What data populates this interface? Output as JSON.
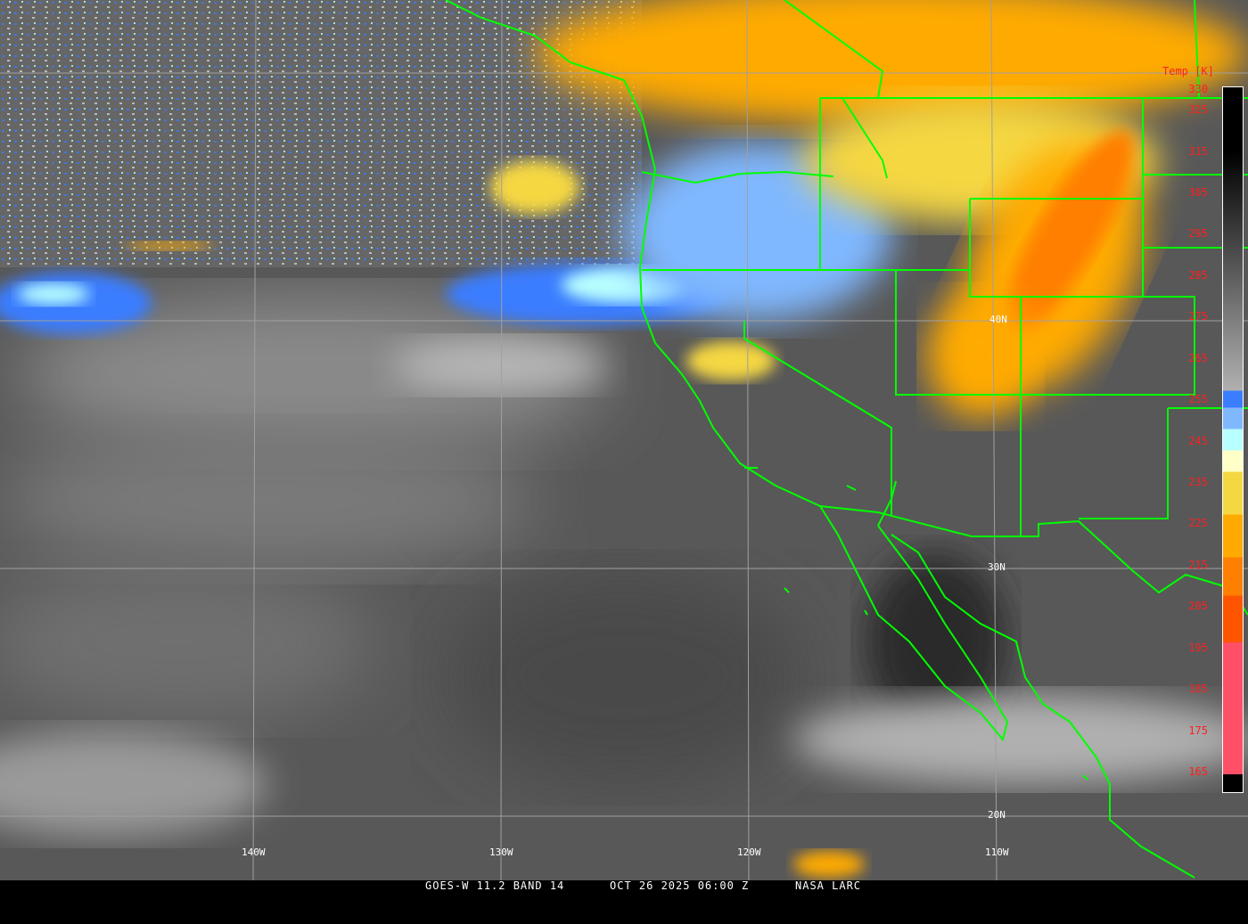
{
  "caption": {
    "satellite_band": "GOES-W 11.2 BAND 14",
    "datetime": "OCT 26 2025 06:00 Z",
    "source": "NASA LARC"
  },
  "longitude_labels": [
    "140W",
    "130W",
    "120W",
    "110W"
  ],
  "latitude_labels": [
    "40N",
    "30N",
    "20N"
  ],
  "colorbar": {
    "title": "Temp [K]",
    "ticks": [
      "330",
      "325",
      "315",
      "305",
      "295",
      "285",
      "275",
      "265",
      "255",
      "245",
      "235",
      "225",
      "215",
      "205",
      "195",
      "185",
      "175",
      "165"
    ],
    "range_k": [
      165,
      330
    ],
    "colors": {
      "warm_gray_top": "#000000",
      "mid_gray": "#808080",
      "blue": "#3a7dff",
      "light_blue": "#80b8ff",
      "cyan": "#b8ffff",
      "pale_yellow": "#ffffc8",
      "yellow": "#f5d742",
      "orange": "#ffaa00",
      "dark_orange": "#ff7f00",
      "red_orange": "#ff5500",
      "pink": "#ff5068"
    }
  },
  "map_colors": {
    "ocean_clear": "#585858",
    "boundaries": "#00ff00",
    "graticule": "#a0a0a0"
  }
}
